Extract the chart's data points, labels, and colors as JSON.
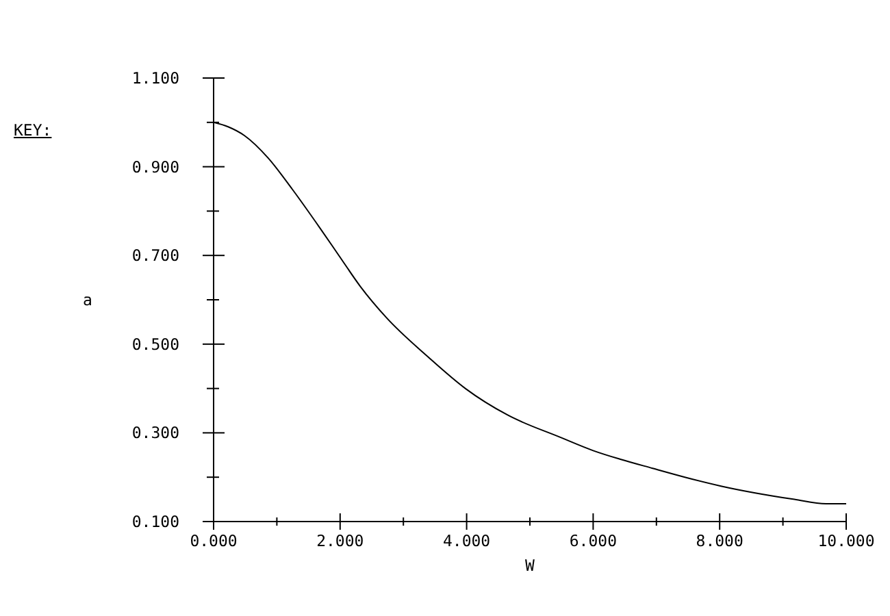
{
  "chart_data": {
    "type": "line",
    "xlabel": "W",
    "ylabel": "a",
    "annotations": [
      "KEY:"
    ],
    "x": [
      0,
      0.23,
      0.49,
      0.86,
      1.24,
      1.69,
      1.98,
      2.32,
      2.73,
      3.4,
      3.98,
      4.65,
      5.48,
      6.0,
      6.44,
      6.94,
      7.45,
      8.02,
      9.18,
      9.68,
      10
    ],
    "series": [
      {
        "color": "#000000",
        "values": [
          1.0,
          0.99,
          0.97,
          0.92,
          0.85,
          0.76,
          0.7,
          0.63,
          0.56,
          0.47,
          0.4,
          0.34,
          0.29,
          0.26,
          0.24,
          0.22,
          0.2,
          0.18,
          0.15,
          0.14,
          0.14
        ]
      }
    ],
    "xlim": [
      0,
      10
    ],
    "ylim": [
      0.1,
      1.1
    ],
    "xticks": [
      {
        "value": 0,
        "label": "0.000"
      },
      {
        "value": 1,
        "label": null
      },
      {
        "value": 2,
        "label": "2.000"
      },
      {
        "value": 3,
        "label": null
      },
      {
        "value": 4,
        "label": "4.000"
      },
      {
        "value": 5,
        "label": null
      },
      {
        "value": 6,
        "label": "6.000"
      },
      {
        "value": 7,
        "label": null
      },
      {
        "value": 8,
        "label": "8.000"
      },
      {
        "value": 9,
        "label": null
      },
      {
        "value": 10,
        "label": "10.000"
      }
    ],
    "yticks": [
      {
        "value": 0.1,
        "label": "0.100"
      },
      {
        "value": 0.2,
        "label": null
      },
      {
        "value": 0.3,
        "label": "0.300"
      },
      {
        "value": 0.4,
        "label": null
      },
      {
        "value": 0.5,
        "label": "0.500"
      },
      {
        "value": 0.6,
        "label": null
      },
      {
        "value": 0.7,
        "label": "0.700"
      },
      {
        "value": 0.8,
        "label": null
      },
      {
        "value": 0.9,
        "label": "0.900"
      },
      {
        "value": 1.0,
        "label": null
      },
      {
        "value": 1.1,
        "label": "1.100"
      }
    ],
    "grid": false,
    "marker": "none",
    "line_style": "solid"
  }
}
